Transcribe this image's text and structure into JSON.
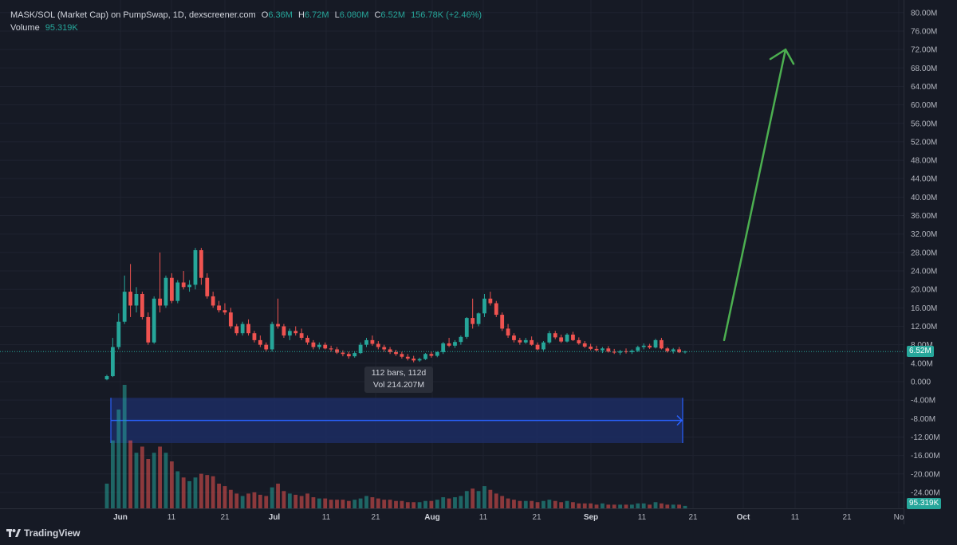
{
  "legend": {
    "symbol": "MASK/SOL (Market Cap) on PumpSwap, 1D, dexscreener.com",
    "o_label": "O",
    "o_value": "6.36M",
    "h_label": "H",
    "h_value": "6.72M",
    "l_label": "L",
    "l_value": "6.080M",
    "c_label": "C",
    "c_value": "6.52M",
    "change": "156.78K (+2.46%)",
    "volume_label": "Volume",
    "volume_value": "95.319K"
  },
  "tooltip": {
    "line1": "112 bars, 112d",
    "line2": "Vol 214.207M"
  },
  "price_badge": "6.52M",
  "volume_badge": "95.319K",
  "brand": "TradingView",
  "colors": {
    "up": "#26a69a",
    "down": "#ef5350",
    "arrow": "#4caf50",
    "range_fill": "#1c2d63",
    "range_line": "#2962ff",
    "background": "#161a25"
  },
  "chart_data": {
    "type": "candlestick",
    "y_axis_ticks": [
      "80.00M",
      "76.00M",
      "72.00M",
      "68.00M",
      "64.00M",
      "60.00M",
      "56.00M",
      "52.00M",
      "48.00M",
      "44.00M",
      "40.00M",
      "36.00M",
      "32.00M",
      "28.00M",
      "24.00M",
      "20.00M",
      "16.00M",
      "12.00M",
      "8.00M",
      "4.00M",
      "0.000",
      "-4.00M",
      "-8.00M",
      "-12.00M",
      "-16.00M",
      "-20.00M",
      "-24.00M"
    ],
    "ylim": [
      -27,
      82
    ],
    "x_axis_ticks": [
      "Jun",
      "11",
      "21",
      "Jul",
      "11",
      "21",
      "Aug",
      "11",
      "21",
      "Sep",
      "11",
      "21",
      "Oct",
      "11",
      "21",
      "No"
    ],
    "x_major_ticks": [
      "Jun",
      "Jul",
      "Aug",
      "Sep",
      "Oct"
    ],
    "candles_ohlc_millions": [
      [
        0.5,
        1.5,
        0.3,
        1.2
      ],
      [
        1.2,
        9.5,
        1.0,
        7.5
      ],
      [
        7.5,
        14.8,
        7.0,
        13.0
      ],
      [
        13.0,
        23.0,
        12.5,
        19.5
      ],
      [
        19.5,
        25.5,
        14.0,
        16.5
      ],
      [
        16.5,
        20.5,
        15.0,
        19.0
      ],
      [
        19.0,
        19.5,
        13.5,
        14.0
      ],
      [
        14.0,
        15.0,
        8.0,
        8.5
      ],
      [
        8.5,
        18.5,
        8.2,
        18.0
      ],
      [
        18.0,
        28.0,
        15.0,
        16.5
      ],
      [
        16.5,
        23.0,
        16.0,
        22.5
      ],
      [
        22.5,
        23.5,
        17.0,
        17.5
      ],
      [
        17.5,
        22.0,
        17.0,
        21.5
      ],
      [
        21.5,
        24.0,
        20.0,
        20.5
      ],
      [
        20.5,
        22.0,
        19.5,
        21.0
      ],
      [
        21.0,
        29.0,
        20.0,
        28.5
      ],
      [
        28.5,
        29.0,
        21.0,
        22.5
      ],
      [
        22.5,
        23.5,
        18.0,
        18.5
      ],
      [
        18.5,
        19.5,
        16.0,
        16.5
      ],
      [
        16.5,
        17.5,
        15.0,
        15.5
      ],
      [
        15.5,
        17.0,
        14.5,
        15.0
      ],
      [
        15.0,
        16.0,
        11.5,
        12.0
      ],
      [
        12.0,
        12.5,
        10.0,
        10.5
      ],
      [
        10.5,
        13.0,
        10.0,
        12.5
      ],
      [
        12.5,
        13.5,
        10.0,
        10.5
      ],
      [
        10.5,
        11.0,
        8.5,
        9.0
      ],
      [
        9.0,
        10.0,
        7.5,
        8.0
      ],
      [
        8.0,
        8.5,
        6.5,
        7.0
      ],
      [
        7.0,
        13.0,
        6.5,
        12.5
      ],
      [
        12.5,
        18.0,
        11.5,
        12.0
      ],
      [
        12.0,
        12.5,
        9.5,
        10.0
      ],
      [
        10.0,
        11.5,
        9.0,
        11.0
      ],
      [
        11.0,
        12.0,
        10.0,
        10.5
      ],
      [
        10.5,
        11.5,
        9.0,
        9.5
      ],
      [
        9.5,
        10.0,
        8.0,
        8.5
      ],
      [
        8.5,
        9.0,
        7.0,
        7.5
      ],
      [
        7.5,
        8.5,
        7.0,
        8.0
      ],
      [
        8.0,
        8.5,
        7.0,
        7.2
      ],
      [
        7.2,
        7.8,
        6.5,
        7.0
      ],
      [
        7.0,
        7.5,
        6.0,
        6.3
      ],
      [
        6.3,
        6.8,
        5.5,
        6.0
      ],
      [
        6.0,
        6.5,
        5.0,
        5.5
      ],
      [
        5.5,
        6.5,
        5.2,
        6.2
      ],
      [
        6.2,
        8.5,
        6.0,
        8.0
      ],
      [
        8.0,
        9.5,
        7.5,
        9.0
      ],
      [
        9.0,
        10.0,
        7.8,
        8.2
      ],
      [
        8.2,
        8.8,
        7.0,
        7.5
      ],
      [
        7.5,
        8.0,
        6.5,
        7.0
      ],
      [
        7.0,
        7.5,
        6.0,
        6.4
      ],
      [
        6.4,
        6.9,
        5.6,
        6.0
      ],
      [
        6.0,
        6.5,
        5.0,
        5.4
      ],
      [
        5.4,
        6.0,
        4.6,
        5.0
      ],
      [
        5.0,
        5.6,
        4.2,
        4.6
      ],
      [
        4.6,
        5.2,
        4.3,
        4.9
      ],
      [
        4.9,
        6.2,
        4.7,
        6.0
      ],
      [
        6.0,
        6.5,
        5.2,
        5.6
      ],
      [
        5.6,
        6.6,
        5.3,
        6.4
      ],
      [
        6.4,
        8.6,
        6.0,
        8.3
      ],
      [
        8.3,
        9.5,
        7.5,
        7.8
      ],
      [
        7.8,
        9.0,
        7.3,
        8.6
      ],
      [
        8.6,
        10.0,
        8.0,
        9.7
      ],
      [
        9.7,
        14.0,
        9.3,
        13.8
      ],
      [
        13.8,
        18.0,
        11.5,
        12.5
      ],
      [
        12.5,
        15.0,
        12.0,
        14.8
      ],
      [
        14.8,
        19.0,
        14.0,
        18.0
      ],
      [
        18.0,
        19.5,
        16.5,
        17.0
      ],
      [
        17.0,
        17.5,
        14.0,
        14.5
      ],
      [
        14.5,
        15.0,
        11.0,
        11.5
      ],
      [
        11.5,
        12.5,
        9.5,
        10.0
      ],
      [
        10.0,
        10.5,
        8.5,
        9.0
      ],
      [
        9.0,
        9.5,
        8.0,
        8.5
      ],
      [
        8.5,
        9.5,
        8.2,
        9.0
      ],
      [
        9.0,
        9.8,
        7.8,
        8.0
      ],
      [
        8.0,
        8.5,
        6.8,
        7.0
      ],
      [
        7.0,
        8.8,
        6.7,
        8.5
      ],
      [
        8.5,
        11.0,
        8.2,
        10.5
      ],
      [
        10.5,
        11.0,
        9.2,
        9.6
      ],
      [
        9.6,
        10.2,
        8.4,
        8.7
      ],
      [
        8.7,
        10.5,
        8.5,
        10.2
      ],
      [
        10.2,
        10.8,
        8.8,
        9.0
      ],
      [
        9.0,
        9.6,
        8.0,
        8.3
      ],
      [
        8.3,
        8.8,
        7.3,
        7.6
      ],
      [
        7.6,
        8.2,
        6.8,
        7.1
      ],
      [
        7.1,
        7.8,
        6.5,
        6.8
      ],
      [
        6.8,
        7.5,
        6.2,
        7.2
      ],
      [
        7.2,
        7.7,
        6.3,
        6.5
      ],
      [
        6.5,
        7.1,
        6.0,
        6.3
      ],
      [
        6.3,
        6.9,
        5.8,
        6.6
      ],
      [
        6.6,
        7.2,
        6.1,
        6.4
      ],
      [
        6.4,
        7.0,
        6.0,
        6.7
      ],
      [
        6.7,
        7.8,
        6.4,
        7.5
      ],
      [
        7.5,
        8.3,
        7.0,
        7.8
      ],
      [
        7.8,
        8.2,
        7.1,
        7.4
      ],
      [
        7.4,
        9.3,
        7.2,
        9.0
      ],
      [
        9.0,
        9.5,
        7.0,
        7.2
      ],
      [
        7.2,
        7.5,
        6.3,
        6.6
      ],
      [
        6.6,
        7.3,
        6.1,
        7.0
      ],
      [
        7.0,
        7.5,
        6.2,
        6.36
      ],
      [
        6.36,
        6.72,
        6.08,
        6.52
      ]
    ],
    "volume_relative": [
      0.2,
      0.55,
      0.8,
      1.0,
      0.55,
      0.45,
      0.5,
      0.4,
      0.45,
      0.5,
      0.45,
      0.38,
      0.3,
      0.25,
      0.22,
      0.25,
      0.28,
      0.27,
      0.26,
      0.2,
      0.18,
      0.15,
      0.12,
      0.1,
      0.12,
      0.13,
      0.11,
      0.1,
      0.17,
      0.2,
      0.14,
      0.12,
      0.11,
      0.1,
      0.12,
      0.09,
      0.08,
      0.08,
      0.07,
      0.07,
      0.07,
      0.06,
      0.07,
      0.08,
      0.1,
      0.09,
      0.08,
      0.07,
      0.07,
      0.06,
      0.06,
      0.05,
      0.05,
      0.05,
      0.06,
      0.06,
      0.07,
      0.09,
      0.08,
      0.09,
      0.1,
      0.14,
      0.16,
      0.14,
      0.18,
      0.15,
      0.12,
      0.1,
      0.08,
      0.07,
      0.06,
      0.06,
      0.06,
      0.05,
      0.06,
      0.07,
      0.06,
      0.05,
      0.06,
      0.05,
      0.04,
      0.04,
      0.04,
      0.03,
      0.04,
      0.03,
      0.03,
      0.03,
      0.03,
      0.03,
      0.04,
      0.04,
      0.03,
      0.05,
      0.04,
      0.03,
      0.03,
      0.03,
      0.02
    ],
    "annotations": [
      "date-range measurement 112 bars, 112d",
      "upward arrow from about 9M to about 72M"
    ],
    "grid": true
  }
}
